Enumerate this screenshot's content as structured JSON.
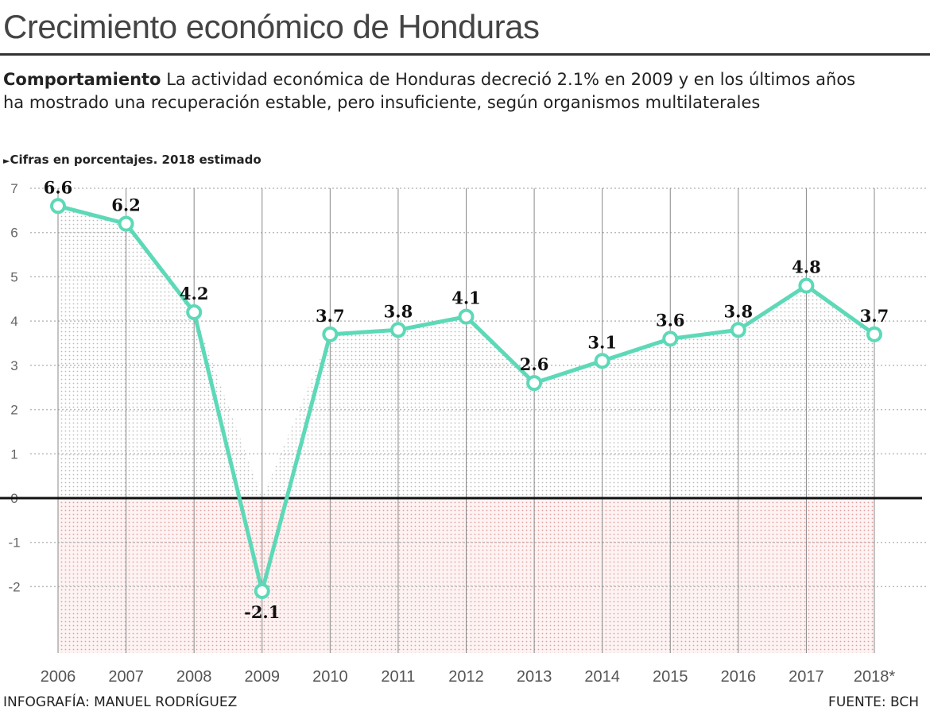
{
  "title": "Crecimiento económico de Honduras",
  "description": {
    "lead": "Comportamiento",
    "text": "La actividad económica de Honduras decreció 2.1% en 2009 y en los últimos años ha mostrado una recuperación estable, pero insuficiente, según organismos multilaterales"
  },
  "note": "Cifras en porcentajes. 2018 estimado",
  "credit": "INFOGRAFÍA: MANUEL RODRÍGUEZ",
  "source": "FUENTE: BCH",
  "chart_data": {
    "type": "line",
    "categories": [
      "2006",
      "2007",
      "2008",
      "2009",
      "2010",
      "2011",
      "2012",
      "2013",
      "2014",
      "2015",
      "2016",
      "2017",
      "2018*"
    ],
    "values": [
      6.6,
      6.2,
      4.2,
      -2.1,
      3.7,
      3.8,
      4.1,
      2.6,
      3.1,
      3.6,
      3.8,
      4.8,
      3.7
    ],
    "data_labels": [
      "6.6",
      "6.2",
      "4.2",
      "-2.1",
      "3.7",
      "3.8",
      "4.1",
      "2.6",
      "3.1",
      "3.6",
      "3.8",
      "4.8",
      "3.7"
    ],
    "y_ticks": [
      "7",
      "6",
      "5",
      "4",
      "3",
      "2",
      "1",
      "0",
      "-1",
      "-2"
    ],
    "ylim": [
      -3.5,
      7
    ],
    "grid": true,
    "colors": {
      "line": "#5dd9b8",
      "zero_line": "#111111",
      "negative_fill": "#f3c9c9",
      "positive_fill": "#bbbbbb"
    }
  }
}
